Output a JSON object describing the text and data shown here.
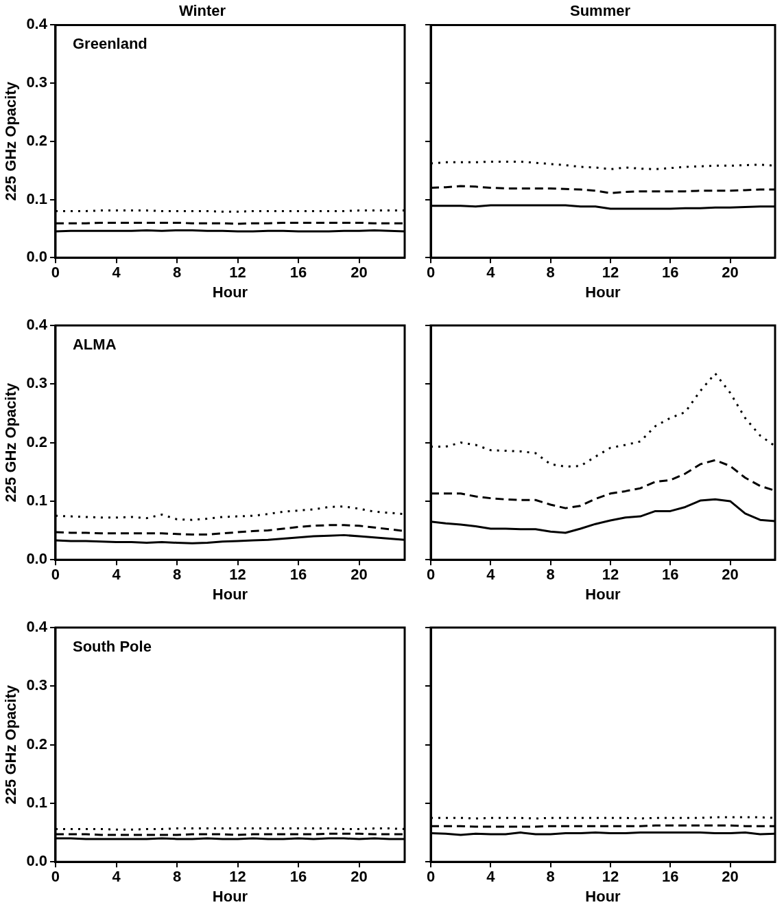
{
  "chart_data": [
    {
      "type": "line",
      "title": "Winter",
      "ylabel": "225 GHz Opacity",
      "xlabel": "Hour",
      "annotations": [
        "Greenland"
      ],
      "x": [
        0,
        1,
        2,
        3,
        4,
        5,
        6,
        7,
        8,
        9,
        10,
        11,
        12,
        13,
        14,
        15,
        16,
        17,
        18,
        19,
        20,
        21,
        22,
        23
      ],
      "xlim": [
        0,
        23
      ],
      "xticks": [
        0,
        4,
        8,
        12,
        16,
        20
      ],
      "ylim": [
        0,
        0.4
      ],
      "yticks": [
        {
          "value": 0,
          "label": "0.0"
        },
        {
          "value": 0.1,
          "label": "0.1"
        },
        {
          "value": 0.2,
          "label": "0.2"
        },
        {
          "value": 0.3,
          "label": "0.3"
        },
        {
          "value": 0.4,
          "label": "0.4"
        }
      ],
      "series": [
        {
          "color": "#000000",
          "line_style": "solid",
          "values": [
            0.045,
            0.046,
            0.046,
            0.046,
            0.046,
            0.046,
            0.047,
            0.046,
            0.047,
            0.047,
            0.046,
            0.046,
            0.045,
            0.045,
            0.046,
            0.046,
            0.045,
            0.045,
            0.045,
            0.046,
            0.046,
            0.047,
            0.046,
            0.045
          ]
        },
        {
          "color": "#000000",
          "line_style": "dashed",
          "values": [
            0.059,
            0.059,
            0.059,
            0.06,
            0.06,
            0.06,
            0.06,
            0.06,
            0.06,
            0.059,
            0.059,
            0.059,
            0.058,
            0.059,
            0.059,
            0.06,
            0.06,
            0.06,
            0.06,
            0.06,
            0.06,
            0.059,
            0.059,
            0.059
          ]
        },
        {
          "color": "#000000",
          "line_style": "dotted",
          "values": [
            0.08,
            0.08,
            0.08,
            0.081,
            0.081,
            0.081,
            0.081,
            0.08,
            0.08,
            0.08,
            0.08,
            0.079,
            0.079,
            0.08,
            0.08,
            0.08,
            0.08,
            0.08,
            0.08,
            0.08,
            0.081,
            0.081,
            0.081,
            0.081
          ]
        }
      ]
    },
    {
      "type": "line",
      "title": "Summer",
      "xlabel": "Hour",
      "tick_labels": "x",
      "x": [
        0,
        1,
        2,
        3,
        4,
        5,
        6,
        7,
        8,
        9,
        10,
        11,
        12,
        13,
        14,
        15,
        16,
        17,
        18,
        19,
        20,
        21,
        22,
        23
      ],
      "xlim": [
        0,
        23
      ],
      "xticks": [
        0,
        4,
        8,
        12,
        16,
        20
      ],
      "ylim": [
        0,
        0.4
      ],
      "yticks": [
        {
          "value": 0,
          "label": null
        },
        {
          "value": 0.1,
          "label": null
        },
        {
          "value": 0.2,
          "label": null
        },
        {
          "value": 0.3,
          "label": null
        },
        {
          "value": 0.4,
          "label": null
        }
      ],
      "series": [
        {
          "color": "#000000",
          "line_style": "solid",
          "values": [
            0.089,
            0.089,
            0.089,
            0.088,
            0.09,
            0.09,
            0.09,
            0.09,
            0.09,
            0.09,
            0.088,
            0.088,
            0.084,
            0.084,
            0.084,
            0.084,
            0.084,
            0.085,
            0.085,
            0.086,
            0.086,
            0.087,
            0.088,
            0.088
          ]
        },
        {
          "color": "#000000",
          "line_style": "dashed",
          "values": [
            0.12,
            0.121,
            0.123,
            0.122,
            0.12,
            0.119,
            0.119,
            0.119,
            0.119,
            0.118,
            0.117,
            0.115,
            0.111,
            0.113,
            0.114,
            0.114,
            0.114,
            0.114,
            0.115,
            0.115,
            0.115,
            0.116,
            0.117,
            0.117
          ]
        },
        {
          "color": "#000000",
          "line_style": "dotted",
          "values": [
            0.162,
            0.164,
            0.164,
            0.164,
            0.165,
            0.165,
            0.165,
            0.163,
            0.161,
            0.159,
            0.156,
            0.155,
            0.152,
            0.155,
            0.153,
            0.152,
            0.154,
            0.156,
            0.157,
            0.158,
            0.158,
            0.159,
            0.16,
            0.158
          ]
        }
      ]
    },
    {
      "type": "line",
      "ylabel": "225 GHz Opacity",
      "xlabel": "Hour",
      "annotations": [
        "ALMA"
      ],
      "x": [
        0,
        1,
        2,
        3,
        4,
        5,
        6,
        7,
        8,
        9,
        10,
        11,
        12,
        13,
        14,
        15,
        16,
        17,
        18,
        19,
        20,
        21,
        22,
        23
      ],
      "xlim": [
        0,
        23
      ],
      "xticks": [
        0,
        4,
        8,
        12,
        16,
        20
      ],
      "ylim": [
        0,
        0.4
      ],
      "yticks": [
        {
          "value": 0,
          "label": "0.0"
        },
        {
          "value": 0.1,
          "label": "0.1"
        },
        {
          "value": 0.2,
          "label": "0.2"
        },
        {
          "value": 0.3,
          "label": "0.3"
        },
        {
          "value": 0.4,
          "label": "0.4"
        }
      ],
      "series": [
        {
          "color": "#000000",
          "line_style": "solid",
          "values": [
            0.033,
            0.032,
            0.032,
            0.031,
            0.03,
            0.03,
            0.029,
            0.03,
            0.029,
            0.028,
            0.029,
            0.031,
            0.032,
            0.033,
            0.034,
            0.036,
            0.038,
            0.04,
            0.041,
            0.042,
            0.04,
            0.038,
            0.036,
            0.034
          ]
        },
        {
          "color": "#000000",
          "line_style": "dashed",
          "values": [
            0.047,
            0.046,
            0.046,
            0.045,
            0.045,
            0.045,
            0.045,
            0.045,
            0.044,
            0.043,
            0.043,
            0.045,
            0.047,
            0.049,
            0.05,
            0.053,
            0.056,
            0.058,
            0.059,
            0.059,
            0.058,
            0.055,
            0.052,
            0.049
          ]
        },
        {
          "color": "#000000",
          "line_style": "dotted",
          "values": [
            0.075,
            0.074,
            0.073,
            0.072,
            0.072,
            0.073,
            0.071,
            0.077,
            0.069,
            0.068,
            0.07,
            0.073,
            0.074,
            0.075,
            0.078,
            0.082,
            0.084,
            0.086,
            0.09,
            0.091,
            0.087,
            0.082,
            0.08,
            0.078
          ]
        }
      ]
    },
    {
      "type": "line",
      "xlabel": "Hour",
      "tick_labels": "x",
      "x": [
        0,
        1,
        2,
        3,
        4,
        5,
        6,
        7,
        8,
        9,
        10,
        11,
        12,
        13,
        14,
        15,
        16,
        17,
        18,
        19,
        20,
        21,
        22,
        23
      ],
      "xlim": [
        0,
        23
      ],
      "xticks": [
        0,
        4,
        8,
        12,
        16,
        20
      ],
      "ylim": [
        0,
        0.4
      ],
      "yticks": [
        {
          "value": 0,
          "label": null
        },
        {
          "value": 0.1,
          "label": null
        },
        {
          "value": 0.2,
          "label": null
        },
        {
          "value": 0.3,
          "label": null
        },
        {
          "value": 0.4,
          "label": null
        }
      ],
      "series": [
        {
          "color": "#000000",
          "line_style": "solid",
          "values": [
            0.065,
            0.062,
            0.06,
            0.057,
            0.053,
            0.053,
            0.052,
            0.052,
            0.048,
            0.046,
            0.053,
            0.061,
            0.067,
            0.072,
            0.074,
            0.083,
            0.083,
            0.09,
            0.101,
            0.103,
            0.1,
            0.079,
            0.068,
            0.066
          ]
        },
        {
          "color": "#000000",
          "line_style": "dashed",
          "values": [
            0.113,
            0.113,
            0.113,
            0.108,
            0.105,
            0.103,
            0.102,
            0.102,
            0.094,
            0.088,
            0.092,
            0.104,
            0.113,
            0.117,
            0.122,
            0.133,
            0.136,
            0.147,
            0.163,
            0.17,
            0.16,
            0.14,
            0.126,
            0.118
          ]
        },
        {
          "color": "#000000",
          "line_style": "dotted",
          "values": [
            0.193,
            0.193,
            0.2,
            0.196,
            0.187,
            0.186,
            0.185,
            0.182,
            0.163,
            0.159,
            0.16,
            0.176,
            0.191,
            0.196,
            0.202,
            0.228,
            0.242,
            0.252,
            0.288,
            0.318,
            0.285,
            0.242,
            0.212,
            0.194
          ]
        }
      ]
    },
    {
      "type": "line",
      "ylabel": "225 GHz Opacity",
      "xlabel": "Hour",
      "annotations": [
        "South Pole"
      ],
      "x": [
        0,
        1,
        2,
        3,
        4,
        5,
        6,
        7,
        8,
        9,
        10,
        11,
        12,
        13,
        14,
        15,
        16,
        17,
        18,
        19,
        20,
        21,
        22,
        23
      ],
      "xlim": [
        0,
        23
      ],
      "xticks": [
        0,
        4,
        8,
        12,
        16,
        20
      ],
      "ylim": [
        0,
        0.4
      ],
      "yticks": [
        {
          "value": 0,
          "label": "0.0"
        },
        {
          "value": 0.1,
          "label": "0.1"
        },
        {
          "value": 0.2,
          "label": "0.2"
        },
        {
          "value": 0.3,
          "label": "0.3"
        },
        {
          "value": 0.4,
          "label": "0.4"
        }
      ],
      "series": [
        {
          "color": "#000000",
          "line_style": "solid",
          "values": [
            0.04,
            0.04,
            0.039,
            0.039,
            0.039,
            0.039,
            0.039,
            0.04,
            0.039,
            0.039,
            0.04,
            0.039,
            0.039,
            0.04,
            0.039,
            0.039,
            0.04,
            0.039,
            0.04,
            0.04,
            0.039,
            0.04,
            0.039,
            0.039
          ]
        },
        {
          "color": "#000000",
          "line_style": "dashed",
          "values": [
            0.047,
            0.047,
            0.047,
            0.046,
            0.046,
            0.046,
            0.046,
            0.046,
            0.046,
            0.047,
            0.047,
            0.047,
            0.046,
            0.047,
            0.047,
            0.047,
            0.047,
            0.047,
            0.048,
            0.048,
            0.048,
            0.047,
            0.047,
            0.047
          ]
        },
        {
          "color": "#000000",
          "line_style": "dotted",
          "values": [
            0.056,
            0.056,
            0.056,
            0.056,
            0.055,
            0.055,
            0.056,
            0.056,
            0.057,
            0.057,
            0.057,
            0.057,
            0.057,
            0.057,
            0.057,
            0.057,
            0.057,
            0.057,
            0.057,
            0.056,
            0.056,
            0.057,
            0.057,
            0.056
          ]
        }
      ]
    },
    {
      "type": "line",
      "xlabel": "Hour",
      "tick_labels": "x",
      "x": [
        0,
        1,
        2,
        3,
        4,
        5,
        6,
        7,
        8,
        9,
        10,
        11,
        12,
        13,
        14,
        15,
        16,
        17,
        18,
        19,
        20,
        21,
        22,
        23
      ],
      "xlim": [
        0,
        23
      ],
      "xticks": [
        0,
        4,
        8,
        12,
        16,
        20
      ],
      "ylim": [
        0,
        0.4
      ],
      "yticks": [
        {
          "value": 0,
          "label": null
        },
        {
          "value": 0.1,
          "label": null
        },
        {
          "value": 0.2,
          "label": null
        },
        {
          "value": 0.3,
          "label": null
        },
        {
          "value": 0.4,
          "label": null
        }
      ],
      "series": [
        {
          "color": "#000000",
          "line_style": "solid",
          "values": [
            0.049,
            0.048,
            0.046,
            0.048,
            0.047,
            0.047,
            0.05,
            0.047,
            0.047,
            0.049,
            0.049,
            0.05,
            0.049,
            0.049,
            0.05,
            0.05,
            0.05,
            0.05,
            0.05,
            0.049,
            0.049,
            0.05,
            0.047,
            0.048
          ]
        },
        {
          "color": "#000000",
          "line_style": "dashed",
          "values": [
            0.061,
            0.061,
            0.061,
            0.06,
            0.06,
            0.06,
            0.06,
            0.06,
            0.061,
            0.061,
            0.061,
            0.061,
            0.061,
            0.061,
            0.061,
            0.062,
            0.062,
            0.062,
            0.062,
            0.062,
            0.062,
            0.061,
            0.061,
            0.061
          ]
        },
        {
          "color": "#000000",
          "line_style": "dotted",
          "values": [
            0.075,
            0.075,
            0.075,
            0.074,
            0.075,
            0.075,
            0.075,
            0.074,
            0.075,
            0.075,
            0.075,
            0.075,
            0.075,
            0.075,
            0.074,
            0.075,
            0.075,
            0.075,
            0.075,
            0.076,
            0.076,
            0.076,
            0.076,
            0.075
          ]
        }
      ]
    }
  ]
}
